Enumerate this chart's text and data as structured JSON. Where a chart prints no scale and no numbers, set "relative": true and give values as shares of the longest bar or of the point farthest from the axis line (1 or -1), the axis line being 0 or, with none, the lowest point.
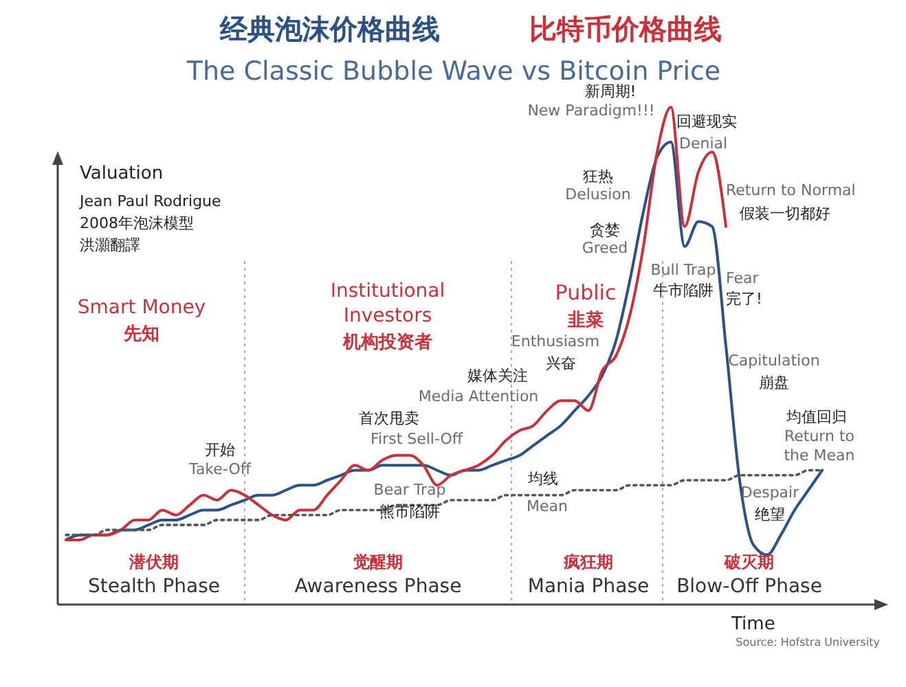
{
  "chart_data": {
    "type": "line",
    "relative": true,
    "title": "The Classic Bubble Wave vs Bitcoin Price",
    "legend": "top",
    "categories": [
      null,
      null,
      null,
      null,
      null,
      null,
      null,
      null,
      null,
      null,
      null,
      null,
      null,
      null,
      null,
      null,
      null,
      null,
      null,
      null,
      null,
      null,
      null,
      null,
      null,
      null,
      null,
      null,
      null,
      null,
      null,
      null,
      null,
      null,
      null,
      null,
      null,
      null,
      null,
      null,
      null,
      null,
      null,
      null,
      null,
      null,
      null,
      null,
      null,
      null,
      null,
      null,
      null,
      null,
      null,
      null
    ],
    "series": [
      {
        "name": "经典泡沫价格曲线",
        "color": "#2c5283",
        "values": [
          0.13,
          0.14,
          0.14,
          0.14,
          0.15,
          0.15,
          0.16,
          0.17,
          0.17,
          0.18,
          0.19,
          0.19,
          0.2,
          0.21,
          0.22,
          0.22,
          0.23,
          0.24,
          0.24,
          0.25,
          0.26,
          0.27,
          0.27,
          0.28,
          0.28,
          0.28,
          0.28,
          0.27,
          0.26,
          0.27,
          0.27,
          0.28,
          0.29,
          0.3,
          0.32,
          0.34,
          0.36,
          0.39,
          0.42,
          0.46,
          0.53,
          0.65,
          0.79,
          0.9,
          0.93,
          0.72,
          0.77,
          0.76,
          0.52,
          0.25,
          0.12,
          0.1,
          0.14,
          0.19,
          0.23,
          0.27
        ]
      },
      {
        "name": "比特币价格曲线",
        "color": "#c8323c",
        "values": [
          0.13,
          0.13,
          0.14,
          0.14,
          0.15,
          0.17,
          0.17,
          0.19,
          0.18,
          0.2,
          0.22,
          0.21,
          0.23,
          0.22,
          0.2,
          0.18,
          0.17,
          0.19,
          0.19,
          0.22,
          0.25,
          0.28,
          0.27,
          0.29,
          0.3,
          0.3,
          0.28,
          0.24,
          0.26,
          0.27,
          0.28,
          0.3,
          0.33,
          0.35,
          0.36,
          0.39,
          0.41,
          0.41,
          0.39,
          0.47,
          0.5,
          0.58,
          0.72,
          0.91,
          1,
          0.76,
          0.87,
          0.91,
          0.76,
          null,
          null,
          null,
          null,
          null,
          null,
          null
        ]
      },
      {
        "color": "#555555",
        "line_style": "dotted",
        "values": [
          0.14,
          0.14,
          0.14,
          0.15,
          0.15,
          0.15,
          0.15,
          0.16,
          0.16,
          0.16,
          0.16,
          0.17,
          0.17,
          0.17,
          0.17,
          0.18,
          0.18,
          0.18,
          0.18,
          0.18,
          0.19,
          0.19,
          0.19,
          0.19,
          0.2,
          0.2,
          0.2,
          0.2,
          0.21,
          0.21,
          0.21,
          0.21,
          0.22,
          0.22,
          0.22,
          0.22,
          0.22,
          0.23,
          0.23,
          0.23,
          0.23,
          0.24,
          0.24,
          0.24,
          0.24,
          0.25,
          0.25,
          0.25,
          0.25,
          0.26,
          0.26,
          0.26,
          0.26,
          0.26,
          0.27,
          0.27
        ]
      }
    ],
    "annotations": [
      "Valuation",
      "Time",
      "Jean Paul Rodrigue",
      "2008年泡沫模型",
      "洪灝翻譯",
      "Smart Money",
      "先知",
      "Institutional",
      "Investors",
      "机构投资者",
      "Public",
      "韭菜",
      "开始",
      "Take-Off",
      "首次甩卖",
      "First Sell-Off",
      "Bear Trap",
      "熊市陷阱",
      "媒体关注",
      "Media Attention",
      "均线",
      "Mean",
      "Enthusiasm",
      "兴奋",
      "贪婪",
      "Greed",
      "狂热",
      "Delusion",
      "新周期!",
      "New Paradigm!!!",
      "回避现实",
      "Denial",
      "Return to Normal",
      "假装一切都好",
      "Bull Trap",
      "牛市陷阱",
      "Fear",
      "完了!",
      "Capitulation",
      "崩盘",
      "均值回归",
      "Return to",
      "the Mean",
      "Despair",
      "绝望",
      "潜伏期",
      "Stealth Phase",
      "觉醒期",
      "Awareness Phase",
      "疯狂期",
      "Mania Phase",
      "破灭期",
      "Blow-Off Phase",
      "Source: Hofstra University"
    ]
  }
}
